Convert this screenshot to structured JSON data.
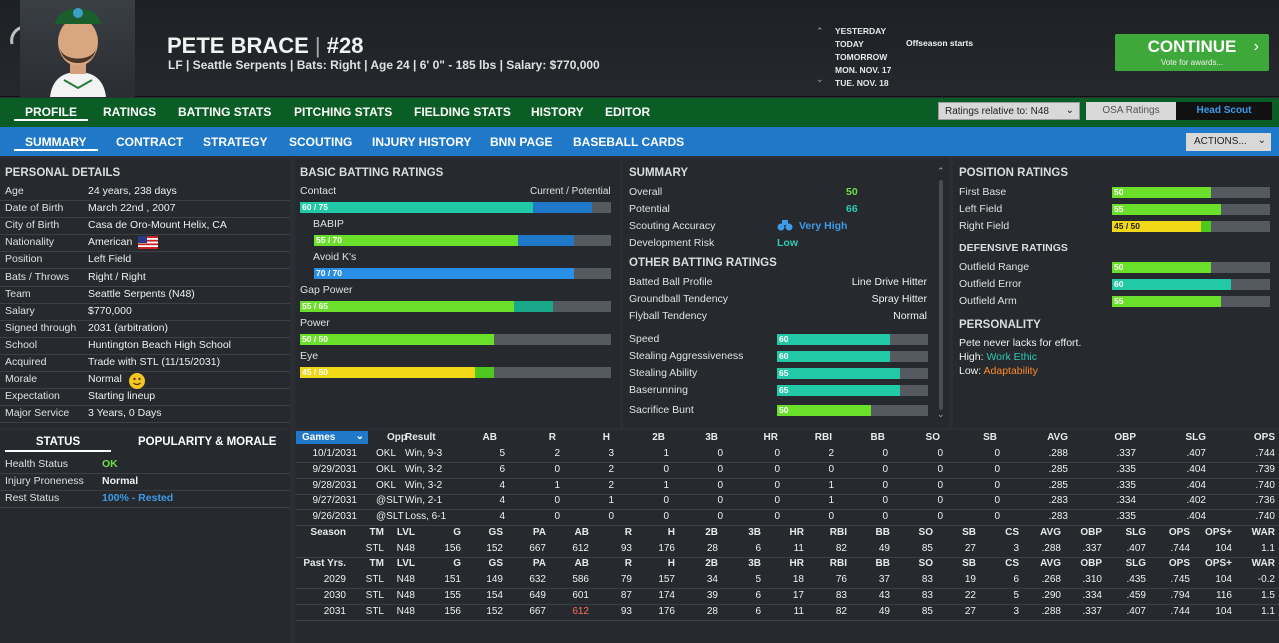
{
  "player": {
    "name": "PETE BRACE",
    "sep": "|",
    "number": "#28",
    "subtitle": "LF | Seattle Serpents  |  Bats: Right  |  Age 24  |  6' 0\" - 185 lbs  |  Salary: $770,000"
  },
  "dates": [
    "YESTERDAY",
    "TODAY",
    "TOMORROW",
    "MON. NOV. 17",
    "TUE. NOV. 18"
  ],
  "today_event": "Offseason starts",
  "continue": {
    "label": "CONTINUE",
    "sub": "Vote for awards..."
  },
  "nav1": [
    "PROFILE",
    "RATINGS",
    "BATTING STATS",
    "PITCHING STATS",
    "FIELDING STATS",
    "HISTORY",
    "EDITOR"
  ],
  "ratings_select": "Ratings relative to: N48",
  "osa": "OSA Ratings",
  "head_scout": "Head Scout",
  "nav2": [
    "SUMMARY",
    "CONTRACT",
    "STRATEGY",
    "SCOUTING",
    "INJURY HISTORY",
    "BNN PAGE",
    "BASEBALL CARDS"
  ],
  "actions": "ACTIONS...",
  "personal": {
    "title": "PERSONAL DETAILS",
    "rows": [
      [
        "Age",
        "24 years, 238 days"
      ],
      [
        "Date of Birth",
        "March 22nd , 2007"
      ],
      [
        "City of Birth",
        "Casa de Oro-Mount Helix, CA"
      ],
      [
        "Nationality",
        "American"
      ],
      [
        "Position",
        "Left Field"
      ],
      [
        "Bats / Throws",
        "Right / Right"
      ],
      [
        "Team",
        "Seattle Serpents (N48)"
      ],
      [
        "Salary",
        "$770,000"
      ],
      [
        "Signed through",
        "2031 (arbitration)"
      ],
      [
        "School",
        "Huntington Beach High School"
      ],
      [
        "Acquired",
        "Trade with STL (11/15/2031)"
      ],
      [
        "Morale",
        "Normal"
      ],
      [
        "Expectation",
        "Starting lineup"
      ],
      [
        "Major Service",
        "3 Years, 0 Days"
      ]
    ]
  },
  "status": {
    "tab1": "STATUS",
    "tab2": "POPULARITY & MORALE",
    "rows": [
      [
        "Health Status",
        "OK"
      ],
      [
        "Injury Proneness",
        "Normal"
      ],
      [
        "Rest Status",
        "100% - Rested"
      ]
    ]
  },
  "batting": {
    "title": "BASIC BATTING RATINGS",
    "cp": "Current / Potential",
    "items": [
      {
        "name": "Contact",
        "label": "60 / 75",
        "cur": 60,
        "pot": 75,
        "color": "#22c9a6",
        "potcolor": "#1f78c8"
      },
      {
        "name": "BABIP",
        "label": "55 / 70",
        "cur": 55,
        "pot": 70,
        "color": "#6be02a",
        "potcolor": "#1f78c8"
      },
      {
        "name": "Avoid K's",
        "label": "70 / 70",
        "cur": 70,
        "pot": 70,
        "color": "#2a8fe6",
        "potcolor": "#2a8fe6"
      },
      {
        "name": "Gap Power",
        "label": "55 / 65",
        "cur": 55,
        "pot": 65,
        "color": "#6be02a",
        "potcolor": "#1aa88a"
      },
      {
        "name": "Power",
        "label": "50 / 50",
        "cur": 50,
        "pot": 50,
        "color": "#6be02a",
        "potcolor": "#6be02a"
      },
      {
        "name": "Eye",
        "label": "45 / 50",
        "cur": 45,
        "pot": 50,
        "color": "#f0d817",
        "potcolor": "#4cc81e"
      }
    ]
  },
  "summary": {
    "title": "SUMMARY",
    "overall_l": "Overall",
    "overall": "50",
    "potential_l": "Potential",
    "potential": "66",
    "scout_l": "Scouting Accuracy",
    "scout": "Very High",
    "dev_l": "Development Risk",
    "dev": "Low"
  },
  "other": {
    "title": "OTHER BATTING RATINGS",
    "text": [
      [
        "Batted Ball Profile",
        "Line Drive Hitter"
      ],
      [
        "Groundball Tendency",
        "Spray Hitter"
      ],
      [
        "Flyball Tendency",
        "Normal"
      ]
    ],
    "bars": [
      {
        "name": "Speed",
        "v": 60,
        "color": "#22c9a6"
      },
      {
        "name": "Stealing Aggressiveness",
        "v": 60,
        "color": "#22c9a6"
      },
      {
        "name": "Stealing Ability",
        "v": 65,
        "color": "#22c9a6"
      },
      {
        "name": "Baserunning",
        "v": 65,
        "color": "#22c9a6"
      },
      {
        "name": "Sacrifice Bunt",
        "v": 50,
        "color": "#6be02a"
      }
    ]
  },
  "position": {
    "title": "POSITION RATINGS",
    "bars": [
      {
        "name": "First Base",
        "label": "50",
        "v": 50,
        "pot": 50,
        "color": "#6be02a"
      },
      {
        "name": "Left Field",
        "label": "55",
        "v": 55,
        "pot": 55,
        "color": "#6be02a"
      },
      {
        "name": "Right Field",
        "label": "45 / 50",
        "v": 45,
        "pot": 50,
        "color": "#f0d817"
      }
    ],
    "def_title": "DEFENSIVE RATINGS",
    "def": [
      {
        "name": "Outfield Range",
        "label": "50",
        "v": 50,
        "color": "#6be02a"
      },
      {
        "name": "Outfield Error",
        "label": "60",
        "v": 60,
        "color": "#22c9a6"
      },
      {
        "name": "Outfield Arm",
        "label": "55",
        "v": 55,
        "color": "#6be02a"
      }
    ]
  },
  "personality": {
    "title": "PERSONALITY",
    "line": "Pete never lacks for effort.",
    "high_l": "High:",
    "high": "Work Ethic",
    "low_l": "Low:",
    "low": "Adaptability"
  },
  "games": {
    "selector": "Games",
    "headers": [
      "Opp",
      "Result",
      "AB",
      "R",
      "H",
      "2B",
      "3B",
      "HR",
      "RBI",
      "BB",
      "SO",
      "SB",
      "AVG",
      "OBP",
      "SLG",
      "OPS"
    ],
    "rows": [
      [
        "10/1/2031",
        "OKL",
        "Win, 9-3",
        "5",
        "2",
        "3",
        "1",
        "0",
        "0",
        "2",
        "0",
        "0",
        "0",
        ".288",
        ".337",
        ".407",
        ".744"
      ],
      [
        "9/29/2031",
        "OKL",
        "Win, 3-2",
        "6",
        "0",
        "2",
        "0",
        "0",
        "0",
        "0",
        "0",
        "0",
        "0",
        ".285",
        ".335",
        ".404",
        ".739"
      ],
      [
        "9/28/2031",
        "OKL",
        "Win, 3-2",
        "4",
        "1",
        "2",
        "1",
        "0",
        "0",
        "1",
        "0",
        "0",
        "0",
        ".285",
        ".335",
        ".404",
        ".740"
      ],
      [
        "9/27/2031",
        "@SLT",
        "Win, 2-1",
        "4",
        "0",
        "1",
        "0",
        "0",
        "0",
        "1",
        "0",
        "0",
        "0",
        ".283",
        ".334",
        ".402",
        ".736"
      ],
      [
        "9/26/2031",
        "@SLT",
        "Loss, 6-1",
        "4",
        "0",
        "0",
        "0",
        "0",
        "0",
        "0",
        "0",
        "0",
        "0",
        ".283",
        ".335",
        ".404",
        ".740"
      ]
    ]
  },
  "season": {
    "headers": [
      "Season",
      "TM",
      "LVL",
      "G",
      "GS",
      "PA",
      "AB",
      "R",
      "H",
      "2B",
      "3B",
      "HR",
      "RBI",
      "BB",
      "SO",
      "SB",
      "CS",
      "AVG",
      "OBP",
      "SLG",
      "OPS",
      "OPS+",
      "WAR"
    ],
    "row": [
      "",
      "STL",
      "N48",
      "156",
      "152",
      "667",
      "612",
      "93",
      "176",
      "28",
      "6",
      "11",
      "82",
      "49",
      "85",
      "27",
      "3",
      ".288",
      ".337",
      ".407",
      ".744",
      "104",
      "1.1"
    ]
  },
  "past": {
    "headers": [
      "Past Yrs.",
      "TM",
      "LVL",
      "G",
      "GS",
      "PA",
      "AB",
      "R",
      "H",
      "2B",
      "3B",
      "HR",
      "RBI",
      "BB",
      "SO",
      "SB",
      "CS",
      "AVG",
      "OBP",
      "SLG",
      "OPS",
      "OPS+",
      "WAR"
    ],
    "rows": [
      [
        "2029",
        "STL",
        "N48",
        "151",
        "149",
        "632",
        "586",
        "79",
        "157",
        "34",
        "5",
        "18",
        "76",
        "37",
        "83",
        "19",
        "6",
        ".268",
        ".310",
        ".435",
        ".745",
        "104",
        "-0.2"
      ],
      [
        "2030",
        "STL",
        "N48",
        "155",
        "154",
        "649",
        "601",
        "87",
        "174",
        "39",
        "6",
        "17",
        "83",
        "43",
        "83",
        "22",
        "5",
        ".290",
        ".334",
        ".459",
        ".794",
        "116",
        "1.5"
      ],
      [
        "2031",
        "STL",
        "N48",
        "156",
        "152",
        "667",
        "612",
        "93",
        "176",
        "28",
        "6",
        "11",
        "82",
        "49",
        "85",
        "27",
        "3",
        ".288",
        ".337",
        ".407",
        ".744",
        "104",
        "1.1"
      ]
    ]
  },
  "colors": {
    "accent_green": "#3fa83a",
    "nav_green": "#0a5e25",
    "nav_blue": "#1f78c8",
    "highlight_red": "#ff6b5b"
  }
}
